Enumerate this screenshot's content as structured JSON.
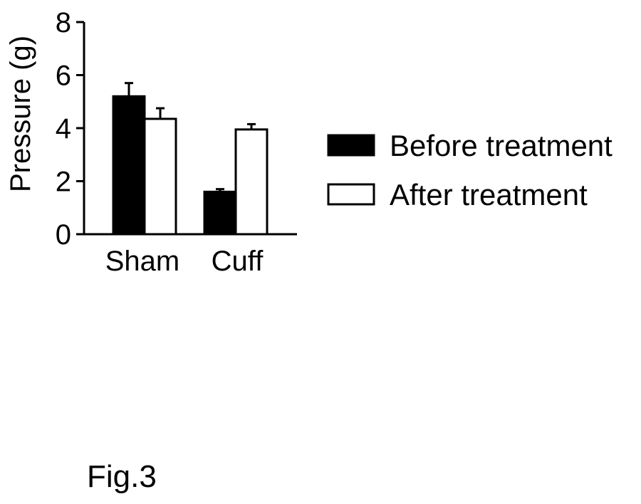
{
  "figure": {
    "caption": "Fig.3"
  },
  "chart_data": {
    "type": "bar",
    "categories": [
      "Sham",
      "Cuff"
    ],
    "ylabel": "Pressure (g)",
    "xlabel": "",
    "ylim": [
      0,
      8
    ],
    "yticks": [
      0,
      2,
      4,
      6,
      8
    ],
    "grid": false,
    "legend_position": "right",
    "series": [
      {
        "name": "Before treatment",
        "values": [
          5.2,
          1.6
        ],
        "errors": [
          0.5,
          0.1
        ],
        "color": "#000000"
      },
      {
        "name": "After treatment",
        "values": [
          4.35,
          3.95
        ],
        "errors": [
          0.4,
          0.2
        ],
        "color": "#ffffff"
      }
    ]
  }
}
